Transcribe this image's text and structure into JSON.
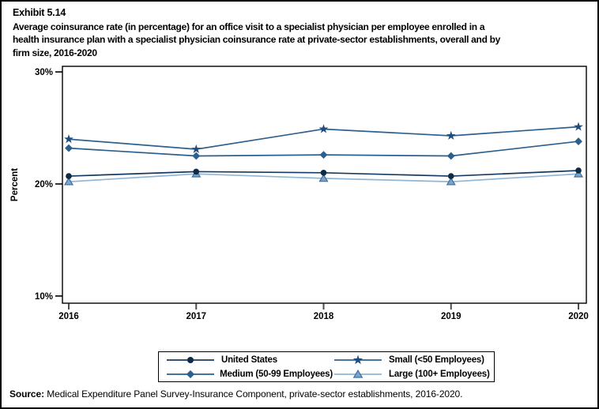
{
  "page": {
    "exhibit_label": "Exhibit 5.14",
    "title_lines": [
      "Average coinsurance rate (in percentage) for an office visit to a specialist physician per employee enrolled in a",
      "health insurance plan with a specialist physician coinsurance rate at private-sector establishments, overall and by",
      "firm size, 2016-2020"
    ],
    "source_label": "Source:",
    "source_text": "Medical Expenditure Panel Survey-Insurance Component, private-sector establishments, 2016-2020."
  },
  "chart_data": {
    "type": "line",
    "title": "Average coinsurance rate (in percentage) for an office visit to a specialist physician per employee enrolled in a health insurance plan with a specialist physician coinsurance rate at private-sector establishments, overall and by firm size, 2016-2020",
    "x": [
      2016,
      2017,
      2018,
      2019,
      2020
    ],
    "xtick_labels": [
      "2016",
      "2017",
      "2018",
      "2019",
      "2020"
    ],
    "xlabel": "",
    "ylabel": "Percent",
    "ylim": [
      9.4,
      30.5
    ],
    "yticks": [
      10,
      20,
      30
    ],
    "ytick_labels": [
      "10%",
      "20%",
      "30%"
    ],
    "grid": false,
    "legend_position": "bottom-box",
    "series": [
      {
        "name": "United States",
        "marker": "circle",
        "marker_color": "#0e2a47",
        "line_color": "#173a60",
        "values": [
          20.7,
          21.1,
          21.0,
          20.7,
          21.2
        ]
      },
      {
        "name": "Medium (50-99 Employees)",
        "marker": "diamond",
        "marker_color": "#2b5f8e",
        "line_color": "#2b5f8e",
        "values": [
          23.2,
          22.5,
          22.6,
          22.5,
          23.8
        ]
      },
      {
        "name": "Small (<50 Employees)",
        "marker": "star",
        "marker_color": "#1f4c7a",
        "line_color": "#2c6190",
        "values": [
          24.0,
          23.1,
          24.9,
          24.3,
          25.1
        ]
      },
      {
        "name": "Large (100+ Employees)",
        "marker": "triangle",
        "marker_color": "#7aa5cd",
        "marker_stroke": "#3e6f9f",
        "line_color": "#8fb6d9",
        "values": [
          20.2,
          20.9,
          20.5,
          20.2,
          20.9
        ]
      }
    ],
    "legend_order": [
      0,
      2,
      1,
      3
    ]
  }
}
